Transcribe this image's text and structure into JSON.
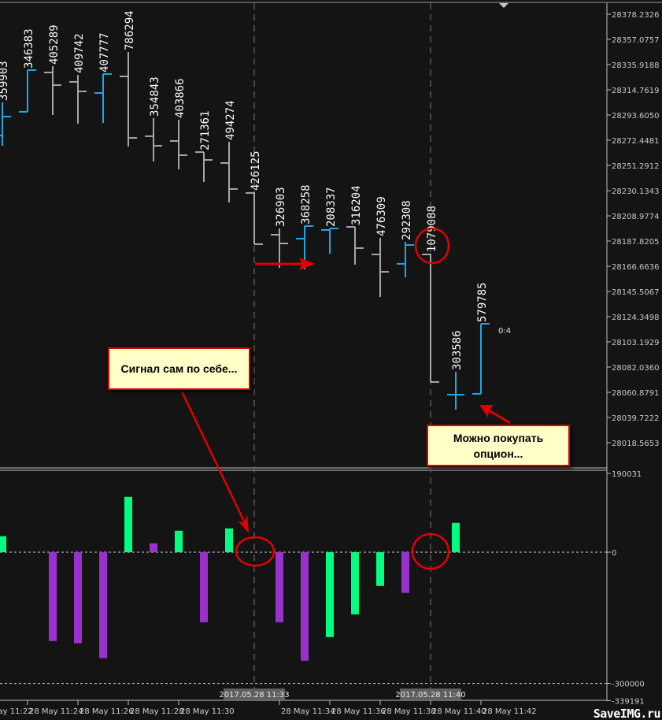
{
  "chart_data": [
    {
      "type": "ohlc",
      "ylim": [
        28018.5653,
        28378.2326
      ],
      "y_ticks": [
        "28378.2326",
        "28357.0757",
        "28335.9188",
        "28314.7619",
        "28293.6050",
        "28272.4481",
        "28251.2912",
        "28230.1343",
        "28208.9774",
        "28187.8205",
        "28166.6636",
        "28145.5067",
        "28124.3498",
        "28103.1929",
        "28082.0360",
        "28060.8791",
        "28039.7222",
        "28018.5653"
      ],
      "x_ticks": [
        "28 May 11:22",
        "28 May 11:24",
        "28 May 11:26",
        "28 May 11:28",
        "28 May 11:30",
        "28 May 11:34",
        "28 May 11:36",
        "28 May 11:38",
        "28 May 11:40",
        "28 May 11:42"
      ],
      "highlighted_times": [
        "2017.05.28 11:33",
        "2017.05.28 11:40"
      ],
      "bar_timer": "0:4",
      "colors": {
        "up": "#1ea7e4",
        "down": "#a6a6a6",
        "background": "#141414",
        "label": "#ffffff"
      },
      "bars": [
        {
          "time": "11:23",
          "open": 28276.4,
          "high": 28304.2,
          "low": 28267.8,
          "close": 28292.3,
          "volume": "359903"
        },
        {
          "time": "11:24",
          "open": 28296.3,
          "high": 28331.3,
          "low": 28296.3,
          "close": 28331.3,
          "volume": "346383"
        },
        {
          "time": "11:25",
          "open": 28329.3,
          "high": 28334.6,
          "low": 28293.6,
          "close": 28318.7,
          "volume": "405289"
        },
        {
          "time": "11:26",
          "open": 28321.4,
          "high": 28327.3,
          "low": 28286.3,
          "close": 28313.4,
          "volume": "409742"
        },
        {
          "time": "11:27",
          "open": 28312.1,
          "high": 28328.0,
          "low": 28287.0,
          "close": 28328.0,
          "volume": "407777"
        },
        {
          "time": "11:28",
          "open": 28326.0,
          "high": 28346.5,
          "low": 28267.2,
          "close": 28274.4,
          "volume": "786294"
        },
        {
          "time": "11:29",
          "open": 28275.8,
          "high": 28291.0,
          "low": 28254.6,
          "close": 28267.8,
          "volume": "354843"
        },
        {
          "time": "11:30",
          "open": 28271.8,
          "high": 28289.6,
          "low": 28248.0,
          "close": 28259.9,
          "volume": "403866"
        },
        {
          "time": "11:31",
          "open": 28262.5,
          "high": 28262.5,
          "low": 28237.4,
          "close": 28255.9,
          "volume": "271361"
        },
        {
          "time": "11:32",
          "open": 28253.3,
          "high": 28271.1,
          "low": 28220.2,
          "close": 28231.5,
          "volume": "494274"
        },
        {
          "time": "11:33",
          "open": 28228.2,
          "high": 28228.8,
          "low": 28185.2,
          "close": 28185.2,
          "volume": "426125"
        },
        {
          "time": "11:34",
          "open": 28193.1,
          "high": 28198.4,
          "low": 28165.3,
          "close": 28185.8,
          "volume": "326903"
        },
        {
          "time": "11:35",
          "open": 28189.8,
          "high": 28200.4,
          "low": 28164.0,
          "close": 28200.4,
          "volume": "368258"
        },
        {
          "time": "11:36",
          "open": 28197.1,
          "high": 28198.4,
          "low": 28177.2,
          "close": 28198.4,
          "volume": "208337"
        },
        {
          "time": "11:37",
          "open": 28199.7,
          "high": 28199.7,
          "low": 28168.0,
          "close": 28181.9,
          "volume": "316204"
        },
        {
          "time": "11:38",
          "open": 28176.6,
          "high": 28190.5,
          "low": 28140.9,
          "close": 28162.0,
          "volume": "476309"
        },
        {
          "time": "11:39",
          "open": 28168.7,
          "high": 28187.2,
          "low": 28157.4,
          "close": 28184.5,
          "volume": "292308"
        },
        {
          "time": "11:40",
          "open": 28176.6,
          "high": 28177.2,
          "low": 28069.5,
          "close": 28069.5,
          "volume": "1079088"
        },
        {
          "time": "11:41",
          "open": 28058.9,
          "high": 28078.1,
          "low": 28046.3,
          "close": 28058.9,
          "volume": "303586"
        },
        {
          "time": "11:42",
          "open": 28059.6,
          "high": 28118.4,
          "low": 28059.6,
          "close": 28118.4,
          "volume": "579785"
        }
      ]
    },
    {
      "type": "bar",
      "ylim": [
        -339191,
        190031
      ],
      "y_ticks": [
        "190031",
        "0",
        "-300000",
        "-339191"
      ],
      "levels": [
        0,
        -300000
      ],
      "colors": {
        "green": "#00ff80",
        "purple": "#9932cc"
      },
      "categories": [
        "11:23",
        "11:24",
        "11:25",
        "11:26",
        "11:27",
        "11:28",
        "11:29",
        "11:30",
        "11:31",
        "11:32",
        "11:33",
        "11:34",
        "11:35",
        "11:36",
        "11:37",
        "11:38",
        "11:39",
        "11:40",
        "11:41",
        "11:42"
      ],
      "values": [
        36500,
        0,
        -203000,
        -208000,
        -242000,
        126500,
        20300,
        49100,
        -160000,
        54500,
        0,
        -160000,
        -248000,
        -194000,
        -142000,
        -77000,
        -93000,
        0,
        67000,
        0
      ],
      "bar_colors": [
        "green",
        "green",
        "purple",
        "purple",
        "purple",
        "green",
        "purple",
        "green",
        "purple",
        "green",
        "green",
        "purple",
        "purple",
        "green",
        "green",
        "green",
        "purple",
        "purple",
        "green",
        "green"
      ]
    }
  ],
  "annotations": {
    "callout_signal": "Сигнал сам по себе...",
    "callout_buy": "Можно покупать опцион...",
    "color": "#e00000"
  },
  "watermark": "SaveIMG.ru"
}
